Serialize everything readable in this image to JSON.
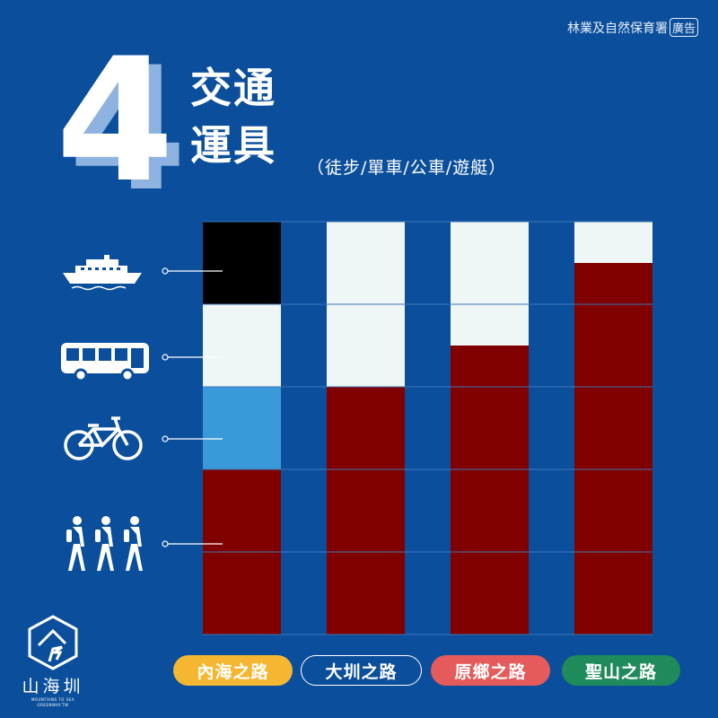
{
  "header": {
    "agency": "林業及自然保育署",
    "ad_badge": "廣告"
  },
  "heading": {
    "number": "4",
    "title_line1": "交通",
    "title_line2": "運具",
    "subtitle": "（徒步/單車/公車/遊艇）"
  },
  "logo": {
    "name": "山海圳",
    "tagline": "MOUNTAINS TO SEA GREENWAY.TW"
  },
  "icons": [
    "ship-icon",
    "bus-icon",
    "bicycle-icon",
    "hikers-icon"
  ],
  "chart_data": {
    "type": "bar",
    "stacked": true,
    "categories": [
      "內海之路",
      "大圳之路",
      "原鄉之路",
      "聖山之路"
    ],
    "category_colors": [
      "#f5b731",
      "#0b4f9c",
      "#e55a5a",
      "#1f8a5a"
    ],
    "ylim": [
      0,
      100
    ],
    "grid": true,
    "series": [
      {
        "name": "徒步",
        "color": "#800000",
        "values": [
          40,
          60,
          70,
          90
        ]
      },
      {
        "name": "單車",
        "color": "#3a9ad9",
        "values": [
          20,
          0,
          0,
          0
        ]
      },
      {
        "name": "公車",
        "color": "#eef6f6",
        "values": [
          20,
          40,
          30,
          10
        ]
      },
      {
        "name": "遊艇",
        "color": "#000000",
        "values": [
          20,
          0,
          0,
          0
        ]
      }
    ]
  }
}
